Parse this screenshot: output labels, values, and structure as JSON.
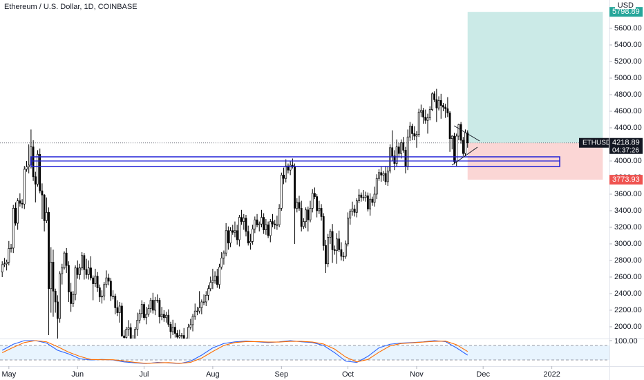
{
  "chart_data": {
    "type": "candlestick",
    "title": "Ethereum / U.S. Dollar, 1D, COINBASE",
    "price_scale_label": "USD",
    "symbol_label": "ETHUSD",
    "countdown": "04:37:26",
    "up_color": "#ffffff",
    "down_color": "#000000",
    "x": [
      "2021-04-28",
      "2021-04-29",
      "2021-04-30",
      "2021-05-01",
      "2021-05-02",
      "2021-05-03",
      "2021-05-04",
      "2021-05-05",
      "2021-05-06",
      "2021-05-07",
      "2021-05-08",
      "2021-05-09",
      "2021-05-10",
      "2021-05-11",
      "2021-05-12",
      "2021-05-13",
      "2021-05-14",
      "2021-05-15",
      "2021-05-16",
      "2021-05-17",
      "2021-05-18",
      "2021-05-19",
      "2021-05-20",
      "2021-05-21",
      "2021-05-22",
      "2021-05-23",
      "2021-05-24",
      "2021-05-25",
      "2021-05-26",
      "2021-05-27",
      "2021-05-28",
      "2021-05-29",
      "2021-05-30",
      "2021-05-31",
      "2021-06-01",
      "2021-06-02",
      "2021-06-03",
      "2021-06-04",
      "2021-06-05",
      "2021-06-06",
      "2021-06-07",
      "2021-06-08",
      "2021-06-09",
      "2021-06-10",
      "2021-06-11",
      "2021-06-12",
      "2021-06-13",
      "2021-06-14",
      "2021-06-15",
      "2021-06-16",
      "2021-06-17",
      "2021-06-18",
      "2021-06-19",
      "2021-06-20",
      "2021-06-21",
      "2021-06-22",
      "2021-06-23",
      "2021-06-24",
      "2021-06-25",
      "2021-06-26",
      "2021-06-27",
      "2021-06-28",
      "2021-06-29",
      "2021-06-30",
      "2021-07-01",
      "2021-07-02",
      "2021-07-03",
      "2021-07-04",
      "2021-07-05",
      "2021-07-06",
      "2021-07-07",
      "2021-07-08",
      "2021-07-09",
      "2021-07-10",
      "2021-07-11",
      "2021-07-12",
      "2021-07-13",
      "2021-07-14",
      "2021-07-15",
      "2021-07-16",
      "2021-07-17",
      "2021-07-18",
      "2021-07-19",
      "2021-07-20",
      "2021-07-21",
      "2021-07-22",
      "2021-07-23",
      "2021-07-24",
      "2021-07-25",
      "2021-07-26",
      "2021-07-27",
      "2021-07-28",
      "2021-07-29",
      "2021-07-30",
      "2021-07-31",
      "2021-08-01",
      "2021-08-02",
      "2021-08-03",
      "2021-08-04",
      "2021-08-05",
      "2021-08-06",
      "2021-08-07",
      "2021-08-08",
      "2021-08-09",
      "2021-08-10",
      "2021-08-11",
      "2021-08-12",
      "2021-08-13",
      "2021-08-14",
      "2021-08-15",
      "2021-08-16",
      "2021-08-17",
      "2021-08-18",
      "2021-08-19",
      "2021-08-20",
      "2021-08-21",
      "2021-08-22",
      "2021-08-23",
      "2021-08-24",
      "2021-08-25",
      "2021-08-26",
      "2021-08-27",
      "2021-08-28",
      "2021-08-29",
      "2021-08-30",
      "2021-08-31",
      "2021-09-01",
      "2021-09-02",
      "2021-09-03",
      "2021-09-04",
      "2021-09-05",
      "2021-09-06",
      "2021-09-07",
      "2021-09-08",
      "2021-09-09",
      "2021-09-10",
      "2021-09-11",
      "2021-09-12",
      "2021-09-13",
      "2021-09-14",
      "2021-09-15",
      "2021-09-16",
      "2021-09-17",
      "2021-09-18",
      "2021-09-19",
      "2021-09-20",
      "2021-09-21",
      "2021-09-22",
      "2021-09-23",
      "2021-09-24",
      "2021-09-25",
      "2021-09-26",
      "2021-09-27",
      "2021-09-28",
      "2021-09-29",
      "2021-09-30",
      "2021-10-01",
      "2021-10-02",
      "2021-10-03",
      "2021-10-04",
      "2021-10-05",
      "2021-10-06",
      "2021-10-07",
      "2021-10-08",
      "2021-10-09",
      "2021-10-10",
      "2021-10-11",
      "2021-10-12",
      "2021-10-13",
      "2021-10-14",
      "2021-10-15",
      "2021-10-16",
      "2021-10-17",
      "2021-10-18",
      "2021-10-19",
      "2021-10-20",
      "2021-10-21",
      "2021-10-22",
      "2021-10-23",
      "2021-10-24",
      "2021-10-25",
      "2021-10-26",
      "2021-10-27",
      "2021-10-28",
      "2021-10-29",
      "2021-10-30",
      "2021-10-31",
      "2021-11-01",
      "2021-11-02",
      "2021-11-03",
      "2021-11-04",
      "2021-11-05",
      "2021-11-06",
      "2021-11-07",
      "2021-11-08",
      "2021-11-09",
      "2021-11-10",
      "2021-11-11",
      "2021-11-12",
      "2021-11-13",
      "2021-11-14",
      "2021-11-15",
      "2021-11-16",
      "2021-11-17",
      "2021-11-18",
      "2021-11-19",
      "2021-11-20",
      "2021-11-21",
      "2021-11-22",
      "2021-11-23",
      "2021-11-24"
    ],
    "open": [
      2660,
      2750,
      2760,
      2780,
      2945,
      2950,
      3430,
      3250,
      3520,
      3490,
      3480,
      3900,
      3930,
      3950,
      4170,
      3810,
      3720,
      4080,
      3640,
      3590,
      3280,
      3380,
      2460,
      2780,
      2430,
      2300,
      2100,
      2640,
      2710,
      2890,
      2740,
      2420,
      2280,
      2390,
      2710,
      2630,
      2710,
      2860,
      2690,
      2630,
      2710,
      2590,
      2520,
      2610,
      2470,
      2360,
      2370,
      2510,
      2590,
      2550,
      2370,
      2370,
      2230,
      2170,
      2250,
      1890,
      1870,
      1970,
      1990,
      1830,
      1820,
      1970,
      2080,
      2160,
      2270,
      2110,
      2150,
      2220,
      2320,
      2200,
      2320,
      2320,
      2120,
      2150,
      2110,
      2140,
      2030,
      1940,
      1995,
      1920,
      1875,
      1895,
      1895,
      1820,
      1785,
      1995,
      2025,
      2125,
      2190,
      2190,
      2230,
      2300,
      2300,
      2380,
      2460,
      2535,
      2560,
      2610,
      2510,
      2720,
      2830,
      2890,
      3160,
      3010,
      3160,
      3140,
      3160,
      3050,
      3320,
      3270,
      3310,
      3150,
      3010,
      3030,
      3180,
      3290,
      3230,
      3240,
      3320,
      3170,
      3230,
      3100,
      3270,
      3240,
      3230,
      3230,
      3430,
      3830,
      3790,
      3940,
      3890,
      3950,
      3930,
      3430,
      3500,
      3430,
      3210,
      3270,
      3410,
      3290,
      3430,
      3610,
      3570,
      3400,
      3430,
      3330,
      2980,
      2760,
      3080,
      3150,
      2930,
      2920,
      3060,
      2930,
      2850,
      2850,
      3000,
      3310,
      3390,
      3420,
      3380,
      3520,
      3590,
      3560,
      3560,
      3580,
      3420,
      3540,
      3500,
      3600,
      3790,
      3860,
      3830,
      3850,
      3750,
      3880,
      4160,
      4060,
      3970,
      4170,
      4090,
      4220,
      4130,
      3930,
      4290,
      4420,
      4330,
      4300,
      4320,
      4590,
      4610,
      4530,
      4490,
      4520,
      4620,
      4810,
      4740,
      4640,
      4730,
      4670,
      4650,
      4630,
      4580,
      4270,
      4300,
      3990,
      4300,
      4440,
      4250,
      4090,
      4340
    ],
    "high": [
      2790,
      2830,
      2810,
      3035,
      3000,
      3470,
      3500,
      3550,
      3610,
      3540,
      3940,
      4000,
      4200,
      4380,
      4250,
      3870,
      4130,
      4150,
      3730,
      3600,
      3560,
      3440,
      2960,
      2930,
      2460,
      2380,
      2670,
      2760,
      2910,
      2950,
      2790,
      2530,
      2430,
      2740,
      2800,
      2760,
      2900,
      2890,
      2820,
      2800,
      2850,
      2620,
      2700,
      2660,
      2510,
      2440,
      2540,
      2680,
      2640,
      2590,
      2440,
      2400,
      2320,
      2300,
      2290,
      1960,
      2000,
      2080,
      2040,
      1900,
      2000,
      2170,
      2210,
      2320,
      2300,
      2240,
      2270,
      2350,
      2410,
      2360,
      2390,
      2350,
      2240,
      2200,
      2180,
      2210,
      2060,
      2085,
      2045,
      1960,
      1965,
      1925,
      1985,
      1870,
      2035,
      2095,
      2155,
      2280,
      2240,
      2430,
      2330,
      2390,
      2430,
      2500,
      2605,
      2700,
      2670,
      2700,
      2760,
      2900,
      2920,
      3250,
      3210,
      3200,
      3230,
      3270,
      3230,
      3350,
      3410,
      3360,
      3350,
      3220,
      3120,
      3230,
      3330,
      3360,
      3270,
      3410,
      3370,
      3300,
      3270,
      3300,
      3360,
      3290,
      3340,
      3480,
      3860,
      3920,
      4020,
      3970,
      4000,
      4030,
      3970,
      3550,
      3580,
      3520,
      3310,
      3440,
      3450,
      3520,
      3660,
      3680,
      3600,
      3520,
      3480,
      3370,
      3050,
      3120,
      3180,
      3240,
      2980,
      3130,
      3160,
      3020,
      2900,
      3040,
      3380,
      3420,
      3510,
      3470,
      3550,
      3660,
      3620,
      3650,
      3630,
      3620,
      3610,
      3570,
      3690,
      3840,
      3900,
      3930,
      3880,
      3940,
      3930,
      4200,
      4370,
      4130,
      4260,
      4220,
      4260,
      4290,
      4170,
      4380,
      4470,
      4450,
      4420,
      4360,
      4630,
      4680,
      4640,
      4620,
      4570,
      4660,
      4830,
      4840,
      4870,
      4780,
      4810,
      4700,
      4690,
      4770,
      4600,
      4310,
      4340,
      4330,
      4450,
      4470,
      4290,
      4380,
      4370
    ],
    "low": [
      2600,
      2720,
      2680,
      2740,
      2895,
      2890,
      3220,
      3170,
      3450,
      3430,
      3420,
      3870,
      3850,
      3910,
      3760,
      3500,
      3690,
      3610,
      3300,
      3150,
      3250,
      1900,
      2170,
      2120,
      2170,
      1730,
      2050,
      2510,
      2690,
      2650,
      2300,
      2180,
      2240,
      2320,
      2580,
      2570,
      2680,
      2570,
      2580,
      2570,
      2560,
      2320,
      2480,
      2420,
      2300,
      2280,
      2320,
      2470,
      2500,
      2310,
      2330,
      2150,
      2130,
      2050,
      1880,
      1700,
      1840,
      1890,
      1800,
      1760,
      1790,
      1890,
      2040,
      2110,
      2080,
      2030,
      2120,
      2170,
      2160,
      2140,
      2290,
      2040,
      2080,
      2060,
      2050,
      2000,
      1860,
      1900,
      1870,
      1815,
      1845,
      1815,
      1780,
      1720,
      1725,
      1965,
      1945,
      2085,
      2140,
      2160,
      2150,
      2260,
      2250,
      2320,
      2430,
      2455,
      2520,
      2470,
      2460,
      2690,
      2750,
      2850,
      2930,
      2960,
      3110,
      3080,
      2990,
      2970,
      3230,
      3170,
      3090,
      2980,
      2930,
      2990,
      3130,
      3200,
      3150,
      3200,
      3120,
      3110,
      3070,
      3020,
      3200,
      3180,
      3170,
      3200,
      3400,
      3720,
      3740,
      3850,
      3830,
      3910,
      3000,
      3380,
      3400,
      3150,
      3180,
      3190,
      3150,
      3260,
      3380,
      3540,
      3320,
      3360,
      3280,
      2920,
      2650,
      2720,
      3000,
      2770,
      2870,
      2760,
      2900,
      2800,
      2790,
      2820,
      2970,
      3230,
      3340,
      3330,
      3320,
      3490,
      3510,
      3520,
      3510,
      3390,
      3340,
      3460,
      3450,
      3540,
      3760,
      3750,
      3760,
      3710,
      3700,
      3850,
      4000,
      3890,
      3930,
      4040,
      4030,
      4100,
      3850,
      3890,
      4240,
      4250,
      4250,
      4160,
      4290,
      4530,
      4450,
      4450,
      4330,
      4490,
      4600,
      4710,
      4470,
      4610,
      4510,
      4600,
      4520,
      4530,
      4110,
      4140,
      3960,
      3940,
      4250,
      4210,
      4060,
      4060,
      4160
    ],
    "close": [
      2750,
      2760,
      2780,
      2945,
      2950,
      3430,
      3250,
      3520,
      3490,
      3480,
      3900,
      3930,
      3950,
      4170,
      3810,
      3720,
      4080,
      3640,
      3590,
      3280,
      3380,
      2460,
      2780,
      2430,
      2300,
      2100,
      2640,
      2710,
      2890,
      2740,
      2420,
      2280,
      2390,
      2710,
      2630,
      2710,
      2860,
      2690,
      2630,
      2710,
      2590,
      2520,
      2610,
      2470,
      2360,
      2370,
      2510,
      2590,
      2550,
      2370,
      2370,
      2230,
      2170,
      2250,
      1890,
      1870,
      1970,
      1990,
      1830,
      1820,
      1970,
      2080,
      2160,
      2270,
      2110,
      2150,
      2220,
      2320,
      2200,
      2320,
      2320,
      2120,
      2150,
      2110,
      2140,
      2030,
      1940,
      1995,
      1920,
      1875,
      1895,
      1895,
      1820,
      1785,
      1995,
      2025,
      2125,
      2190,
      2190,
      2230,
      2300,
      2300,
      2380,
      2460,
      2535,
      2560,
      2610,
      2510,
      2720,
      2830,
      2890,
      3160,
      3010,
      3160,
      3140,
      3160,
      3050,
      3320,
      3270,
      3310,
      3150,
      3010,
      3030,
      3180,
      3290,
      3230,
      3240,
      3320,
      3170,
      3230,
      3100,
      3270,
      3240,
      3230,
      3230,
      3430,
      3830,
      3790,
      3940,
      3890,
      3950,
      3930,
      3430,
      3500,
      3430,
      3210,
      3270,
      3410,
      3290,
      3430,
      3610,
      3570,
      3400,
      3430,
      3330,
      2980,
      2760,
      3080,
      3150,
      2930,
      2920,
      3060,
      2930,
      2850,
      2850,
      3000,
      3310,
      3390,
      3420,
      3380,
      3520,
      3590,
      3560,
      3560,
      3580,
      3420,
      3540,
      3500,
      3600,
      3790,
      3860,
      3830,
      3850,
      3750,
      3880,
      4160,
      4060,
      3970,
      4170,
      4090,
      4220,
      4130,
      3930,
      4290,
      4420,
      4330,
      4300,
      4320,
      4590,
      4610,
      4530,
      4490,
      4520,
      4620,
      4810,
      4740,
      4640,
      4730,
      4670,
      4650,
      4630,
      4580,
      4270,
      4300,
      3990,
      4300,
      4440,
      4250,
      4090,
      4340,
      4218.89
    ],
    "xlim": [
      "2021-04-27",
      "2022-01-27"
    ],
    "xticks": [
      {
        "value": "2021-05-01",
        "label": "May"
      },
      {
        "value": "2021-06-01",
        "label": "Jun"
      },
      {
        "value": "2021-07-01",
        "label": "Jul"
      },
      {
        "value": "2021-08-01",
        "label": "Aug"
      },
      {
        "value": "2021-09-01",
        "label": "Sep"
      },
      {
        "value": "2021-10-01",
        "label": "Oct"
      },
      {
        "value": "2021-11-01",
        "label": "Nov"
      },
      {
        "value": "2021-12-01",
        "label": "Dec"
      },
      {
        "value": "2022-01-01",
        "label": "2022"
      }
    ],
    "ylim": [
      1858,
      5942
    ],
    "yticks": [
      {
        "value": 2000,
        "label": "2000.00"
      },
      {
        "value": 2200,
        "label": "2200.00"
      },
      {
        "value": 2400,
        "label": "2400.00"
      },
      {
        "value": 2600,
        "label": "2600.00"
      },
      {
        "value": 2800,
        "label": "2800.00"
      },
      {
        "value": 3000,
        "label": "3000.00"
      },
      {
        "value": 3200,
        "label": "3200.00"
      },
      {
        "value": 3400,
        "label": "3400.00"
      },
      {
        "value": 3600,
        "label": "3600.00"
      },
      {
        "value": 3800,
        "label": "3800.00"
      },
      {
        "value": 4000,
        "label": "4000.00"
      },
      {
        "value": 4200,
        "label": "4200.00"
      },
      {
        "value": 4400,
        "label": "4400.00"
      },
      {
        "value": 4600,
        "label": "4600.00"
      },
      {
        "value": 4800,
        "label": "4800.00"
      },
      {
        "value": 5000,
        "label": "5000.00"
      },
      {
        "value": 5200,
        "label": "5200.00"
      },
      {
        "value": 5400,
        "label": "5400.00"
      },
      {
        "value": 5600,
        "label": "5600.00"
      }
    ],
    "position": {
      "start": "2021-11-24",
      "end": "2022-01-24",
      "entry": 4218.89,
      "target": 5798.89,
      "stop": 3773.93,
      "target_color": "#26a69a",
      "stop_color": "#ef5350"
    },
    "oscillator": {
      "x": [
        "2021-04-28",
        "2021-05-03",
        "2021-05-08",
        "2021-05-13",
        "2021-05-18",
        "2021-05-23",
        "2021-05-28",
        "2021-06-02",
        "2021-06-07",
        "2021-06-12",
        "2021-06-17",
        "2021-06-22",
        "2021-06-27",
        "2021-07-02",
        "2021-07-07",
        "2021-07-12",
        "2021-07-17",
        "2021-07-22",
        "2021-07-27",
        "2021-08-01",
        "2021-08-06",
        "2021-08-11",
        "2021-08-16",
        "2021-08-21",
        "2021-08-26",
        "2021-08-31",
        "2021-09-05",
        "2021-09-10",
        "2021-09-15",
        "2021-09-20",
        "2021-09-25",
        "2021-09-30",
        "2021-10-05",
        "2021-10-10",
        "2021-10-15",
        "2021-10-20",
        "2021-10-25",
        "2021-10-30",
        "2021-11-04",
        "2021-11-09",
        "2021-11-14",
        "2021-11-19",
        "2021-11-24"
      ],
      "series": [
        {
          "color": "#2962ff",
          "values": [
            60,
            85,
            100,
            100,
            90,
            60,
            45,
            25,
            20,
            22,
            20,
            12,
            8,
            5,
            10,
            8,
            5,
            15,
            40,
            70,
            88,
            95,
            98,
            95,
            92,
            95,
            100,
            95,
            92,
            80,
            50,
            15,
            10,
            35,
            70,
            85,
            90,
            92,
            95,
            100,
            96,
            70,
            40
          ]
        },
        {
          "color": "#ff6d00",
          "values": [
            50,
            72,
            92,
            100,
            95,
            75,
            52,
            35,
            22,
            21,
            21,
            16,
            10,
            6,
            8,
            9,
            6,
            10,
            28,
            55,
            80,
            92,
            96,
            96,
            94,
            94,
            97,
            97,
            94,
            86,
            65,
            32,
            12,
            22,
            52,
            78,
            88,
            91,
            94,
            97,
            98,
            83,
            55
          ]
        }
      ],
      "bands": [
        20,
        80
      ],
      "ylim": [
        0,
        100
      ],
      "yticks": [
        {
          "value": 100,
          "label": "100.00"
        }
      ]
    }
  }
}
